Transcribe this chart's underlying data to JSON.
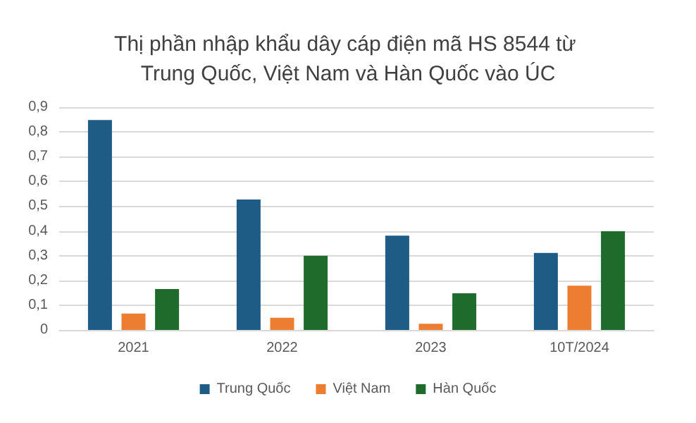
{
  "chart_data": {
    "type": "bar",
    "title": "Thị phần nhập khẩu dây cáp điện mã HS 8544 từ Trung Quốc, Việt Nam và Hàn Quốc vào ÚC",
    "categories": [
      "2021",
      "2022",
      "2023",
      "10T/2024"
    ],
    "series": [
      {
        "name": "Trung Quốc",
        "color": "#1f5c85",
        "values": [
          0.848,
          0.527,
          0.381,
          0.311
        ]
      },
      {
        "name": "Việt Nam",
        "color": "#ed7d31",
        "values": [
          0.066,
          0.049,
          0.025,
          0.179
        ]
      },
      {
        "name": "Hàn Quốc",
        "color": "#1e6b2c",
        "values": [
          0.165,
          0.3,
          0.148,
          0.399
        ]
      }
    ],
    "ylim": [
      0,
      0.9
    ],
    "yticks": [
      0,
      {
        "value": 0.1,
        "label": "0,1"
      },
      {
        "value": 0.2,
        "label": "0,2"
      },
      {
        "value": 0.3,
        "label": "0,3"
      },
      {
        "value": 0.4,
        "label": "0,4"
      },
      {
        "value": 0.5,
        "label": "0,5"
      },
      {
        "value": 0.6,
        "label": "0,6"
      },
      {
        "value": 0.7,
        "label": "0,7"
      },
      {
        "value": 0.8,
        "label": "0,8"
      },
      {
        "value": 0.9,
        "label": "0,9"
      }
    ],
    "grid": "y",
    "legend": "bottom"
  }
}
